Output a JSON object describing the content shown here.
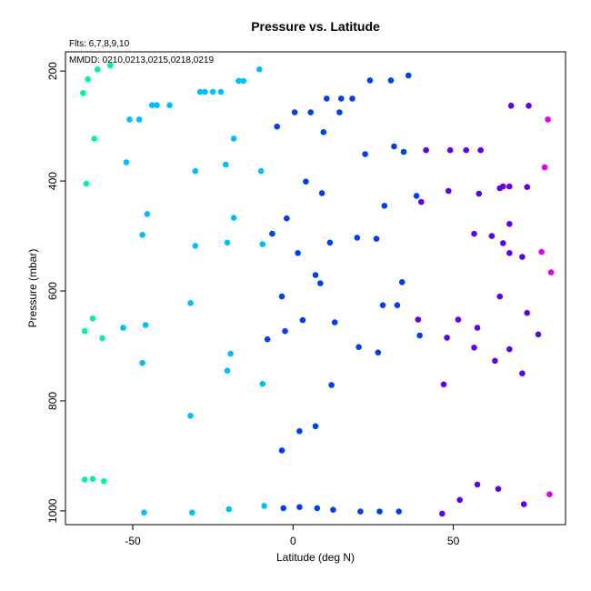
{
  "chart_data": {
    "type": "scatter",
    "title": "Pressure vs. Latitude",
    "annotations": [
      "Flts: 6,7,8,9,10",
      "MMDD: 0210,0213,0215,0218,0219"
    ],
    "xlabel": "Latitude (deg N)",
    "ylabel": "Pressure (mbar)",
    "xlim": [
      -71,
      85
    ],
    "ylim": [
      1025,
      165
    ],
    "y_inverted": true,
    "xticks": [
      -50,
      0,
      50
    ],
    "yticks": [
      200,
      400,
      600,
      800,
      1000
    ],
    "grid": false,
    "legend": "none",
    "series": [
      {
        "color": "#00f5a0",
        "points": [
          [
            -65.5,
            240
          ],
          [
            -64,
            215
          ],
          [
            -61,
            197
          ],
          [
            -57,
            190
          ],
          [
            -62,
            323
          ],
          [
            -64.5,
            405
          ],
          [
            -62.5,
            650
          ],
          [
            -65,
            673
          ],
          [
            -59.5,
            686
          ],
          [
            -65,
            943
          ],
          [
            -62.5,
            942
          ],
          [
            -59,
            946
          ]
        ]
      },
      {
        "color": "#00bfff",
        "points": [
          [
            -51,
            288
          ],
          [
            -48,
            288
          ],
          [
            -44,
            262
          ],
          [
            -42.5,
            262
          ],
          [
            -38.5,
            262
          ],
          [
            -29,
            238
          ],
          [
            -27.5,
            238
          ],
          [
            -25,
            238
          ],
          [
            -22.5,
            238
          ],
          [
            -17,
            218
          ],
          [
            -15.5,
            218
          ],
          [
            -10.5,
            197
          ],
          [
            -52,
            366
          ],
          [
            -30.5,
            382
          ],
          [
            -21,
            370
          ],
          [
            -18.5,
            323
          ],
          [
            -10,
            382
          ],
          [
            -45.5,
            460
          ],
          [
            -47,
            498
          ],
          [
            -30.5,
            518
          ],
          [
            -20.5,
            512
          ],
          [
            -18.5,
            467
          ],
          [
            -9.5,
            515
          ],
          [
            -53,
            667
          ],
          [
            -46,
            662
          ],
          [
            -47,
            731
          ],
          [
            -32,
            622
          ],
          [
            -19.5,
            714
          ],
          [
            -20.5,
            745
          ],
          [
            -9.5,
            769
          ],
          [
            -32,
            827
          ],
          [
            -46.5,
            1003
          ],
          [
            -31.5,
            1003
          ],
          [
            -20,
            997
          ],
          [
            -9,
            991
          ]
        ]
      },
      {
        "color": "#0040ef",
        "points": [
          [
            -5,
            301
          ],
          [
            0.5,
            275
          ],
          [
            5.5,
            275
          ],
          [
            9.5,
            311
          ],
          [
            10.5,
            250
          ],
          [
            14.5,
            275
          ],
          [
            15,
            250
          ],
          [
            18.5,
            250
          ],
          [
            24,
            217
          ],
          [
            30.5,
            217
          ],
          [
            36,
            208
          ],
          [
            22.5,
            351
          ],
          [
            31.5,
            337
          ],
          [
            34.5,
            347
          ],
          [
            4,
            401
          ],
          [
            9,
            422
          ],
          [
            -6.5,
            496
          ],
          [
            -2,
            468
          ],
          [
            1.5,
            531
          ],
          [
            11.5,
            512
          ],
          [
            20,
            503
          ],
          [
            26,
            505
          ],
          [
            28.5,
            445
          ],
          [
            38.5,
            427
          ],
          [
            -3.5,
            610
          ],
          [
            7,
            571
          ],
          [
            8.5,
            586
          ],
          [
            34,
            584
          ],
          [
            -8,
            688
          ],
          [
            -2.5,
            673
          ],
          [
            3,
            653
          ],
          [
            13,
            657
          ],
          [
            28,
            626
          ],
          [
            32.5,
            626
          ],
          [
            39.5,
            681
          ],
          [
            20.5,
            702
          ],
          [
            26.5,
            712
          ],
          [
            12,
            771
          ],
          [
            7,
            846
          ],
          [
            2,
            855
          ],
          [
            -3.5,
            890
          ],
          [
            -3,
            995
          ],
          [
            2,
            993
          ],
          [
            7.5,
            995
          ],
          [
            12.5,
            998
          ],
          [
            21,
            1001
          ],
          [
            27,
            1001
          ],
          [
            33,
            1001
          ]
        ]
      },
      {
        "color": "#6000ee",
        "points": [
          [
            40,
            438
          ],
          [
            41.5,
            344
          ],
          [
            49,
            344
          ],
          [
            54,
            344
          ],
          [
            58.5,
            344
          ],
          [
            48.5,
            418
          ],
          [
            58,
            423
          ],
          [
            64.5,
            413
          ],
          [
            65.5,
            410
          ],
          [
            67.5,
            410
          ],
          [
            68,
            263
          ],
          [
            73.5,
            263
          ],
          [
            73,
            411
          ],
          [
            56.5,
            496
          ],
          [
            62,
            500
          ],
          [
            67.5,
            478
          ],
          [
            65.5,
            513
          ],
          [
            67.5,
            531
          ],
          [
            71.5,
            538
          ],
          [
            39,
            652
          ],
          [
            48,
            685
          ],
          [
            51.5,
            652
          ],
          [
            57.5,
            667
          ],
          [
            56.5,
            703
          ],
          [
            64.5,
            610
          ],
          [
            67.5,
            706
          ],
          [
            63,
            727
          ],
          [
            73,
            640
          ],
          [
            76.5,
            679
          ],
          [
            71.5,
            750
          ],
          [
            47,
            770
          ],
          [
            46.5,
            1005
          ],
          [
            52,
            980
          ],
          [
            57.5,
            952
          ],
          [
            64,
            960
          ],
          [
            72,
            988
          ]
        ]
      },
      {
        "color": "#e000f0",
        "points": [
          [
            79.5,
            288
          ],
          [
            78.5,
            375
          ],
          [
            77.5,
            529
          ],
          [
            80.5,
            566
          ],
          [
            80,
            970
          ]
        ]
      }
    ]
  }
}
